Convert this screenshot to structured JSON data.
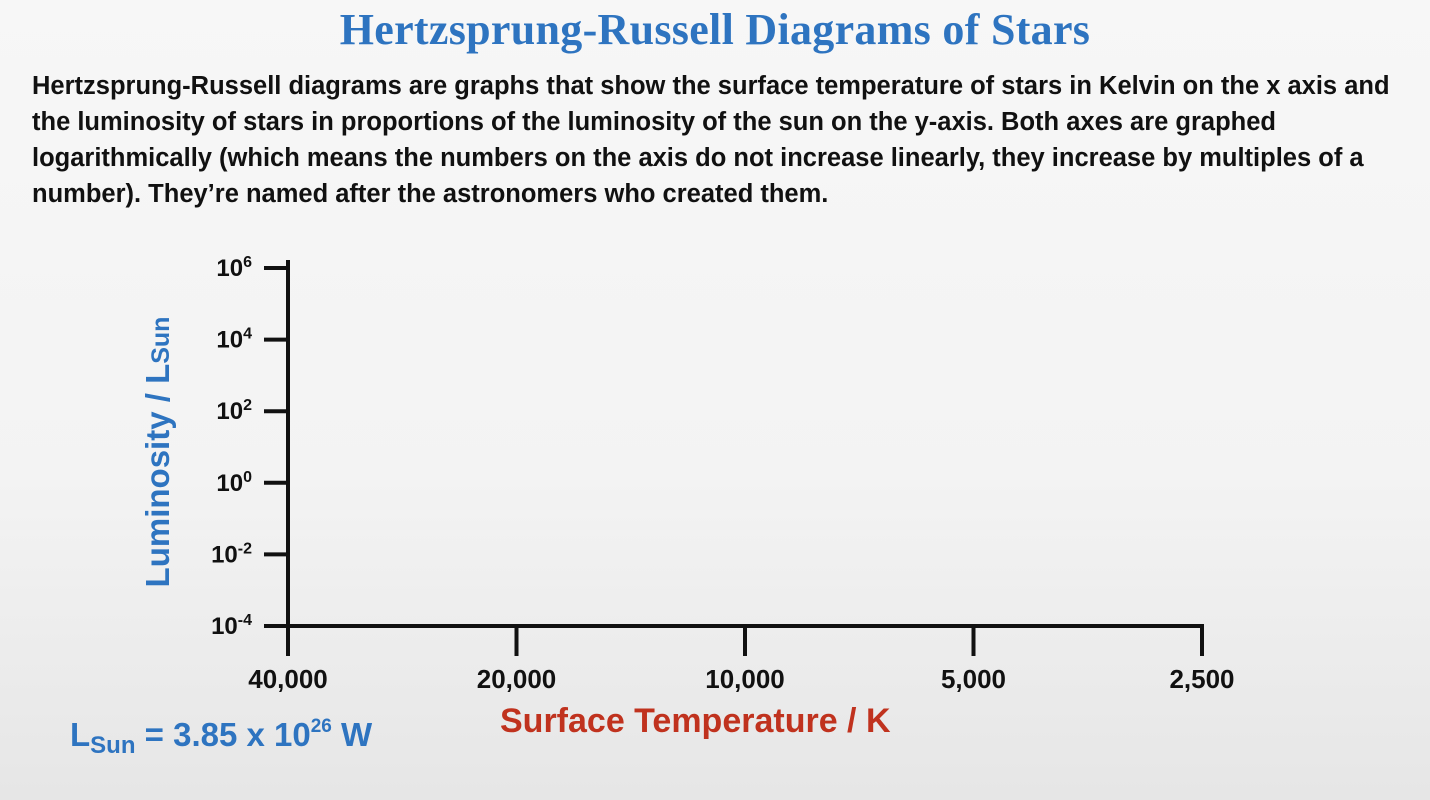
{
  "title": "Hertzsprung-Russell Diagrams of Stars",
  "description": "Hertzsprung-Russell diagrams are graphs that show the surface temperature of stars in Kelvin on the x axis and the luminosity of stars in proportions of the luminosity of the sun on the y-axis. Both axes are graphed logarithmically (which means the numbers on the axis do not increase linearly, they increase by multiples of a number). They’re named after the astronomers who created them.",
  "lsun_note": {
    "main": "L",
    "sub": "Sun",
    "equals": " = 3.85 x 10",
    "exp": "26",
    "unit": " W"
  },
  "chart_data": {
    "type": "scatter",
    "title": "",
    "xlabel": "Surface Temperature / K",
    "ylabel_main": "Luminosity / L",
    "ylabel_sub": "Sun",
    "x_scale": "log",
    "x_reversed": true,
    "y_scale": "log",
    "x_ticks": [
      {
        "value": 40000,
        "label": "40,000"
      },
      {
        "value": 20000,
        "label": "20,000"
      },
      {
        "value": 10000,
        "label": "10,000"
      },
      {
        "value": 5000,
        "label": "5,000"
      },
      {
        "value": 2500,
        "label": "2,500"
      }
    ],
    "y_ticks": [
      {
        "value": 1000000,
        "base": "10",
        "exp": "6"
      },
      {
        "value": 10000,
        "base": "10",
        "exp": "4"
      },
      {
        "value": 100,
        "base": "10",
        "exp": "2"
      },
      {
        "value": 1,
        "base": "10",
        "exp": "0"
      },
      {
        "value": 0.01,
        "base": "10",
        "exp": "-2"
      },
      {
        "value": 0.0001,
        "base": "10",
        "exp": "-4"
      }
    ],
    "xlim": [
      40000,
      2500
    ],
    "ylim": [
      0.0001,
      1000000
    ],
    "grid": false,
    "series": [],
    "colors": {
      "axis": "#111111",
      "title": "#2e74c0",
      "ylabel": "#2e74c0",
      "xlabel": "#c0321e"
    }
  }
}
